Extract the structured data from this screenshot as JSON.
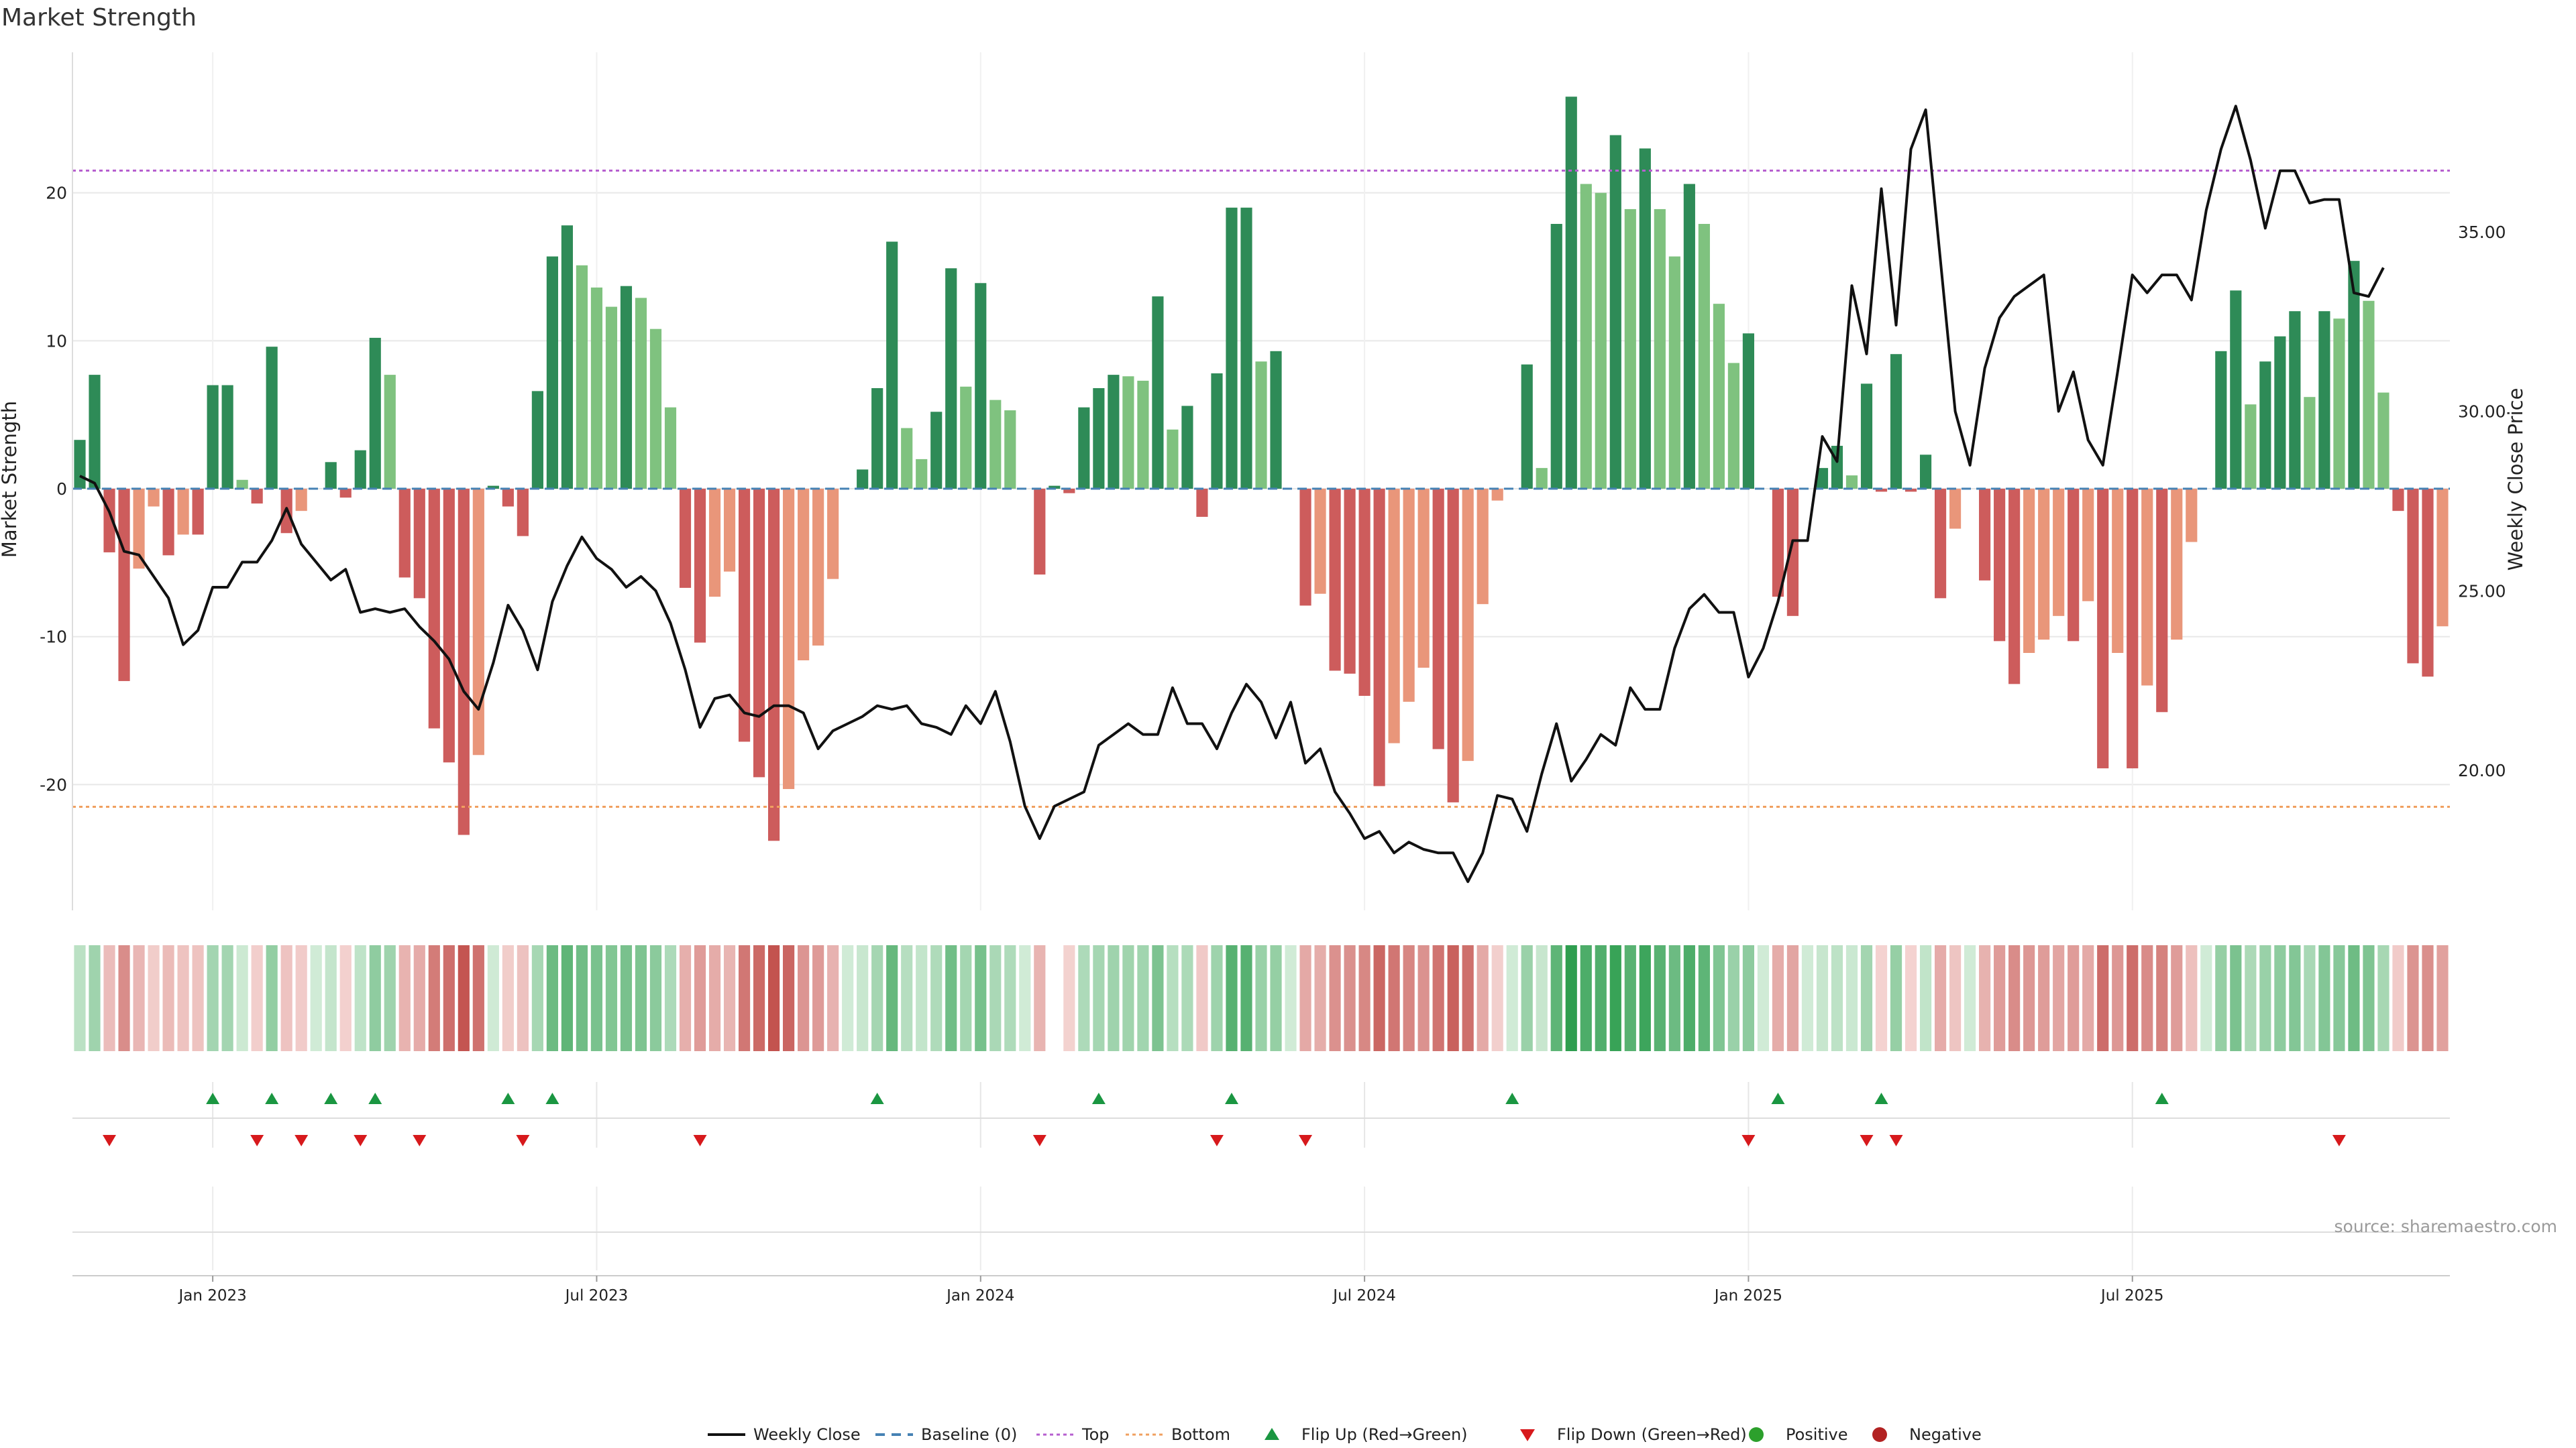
{
  "chart_data": {
    "type": "bar",
    "title": "Market Strength",
    "ylabel_left": "Market Strength",
    "ylabel_right": "Weekly Close Price",
    "source": "source: sharemaestro.com",
    "ylim_left": [
      -28.5,
      29.5
    ],
    "ylim_right": [
      16.1,
      40.0
    ],
    "yticks_left": [
      {
        "value": 20,
        "label": "20"
      },
      {
        "value": 10,
        "label": "10"
      },
      {
        "value": 0,
        "label": "0"
      },
      {
        "value": -10,
        "label": "-10"
      },
      {
        "value": -20,
        "label": "-20"
      }
    ],
    "yticks_right": [
      {
        "value": 35,
        "label": "35.00"
      },
      {
        "value": 30,
        "label": "30.00"
      },
      {
        "value": 25,
        "label": "25.00"
      },
      {
        "value": 20,
        "label": "20.00"
      }
    ],
    "xticks": [
      {
        "index": 9,
        "label": "Jan 2023"
      },
      {
        "index": 35,
        "label": "Jul 2023"
      },
      {
        "index": 61,
        "label": "Jan 2024"
      },
      {
        "index": 87,
        "label": "Jul 2024"
      },
      {
        "index": 113,
        "label": "Jan 2025"
      },
      {
        "index": 139,
        "label": "Jul 2025"
      }
    ],
    "top_line": 21.5,
    "bottom_line": -21.5,
    "market_strength": [
      3.3,
      7.7,
      -4.3,
      -13,
      -5.4,
      -1.2,
      -4.5,
      -3.1,
      -3.1,
      7,
      7,
      0.6,
      -1,
      9.6,
      -3,
      -1.5,
      0,
      1.8,
      -0.6,
      2.6,
      10.2,
      7.7,
      -6,
      -7.4,
      -16.2,
      -18.5,
      -23.4,
      -18,
      0.2,
      -1.2,
      -3.2,
      6.6,
      15.7,
      17.8,
      15.1,
      13.6,
      12.3,
      13.7,
      12.9,
      10.8,
      5.5,
      -6.7,
      -10.4,
      -7.3,
      -5.6,
      -17.1,
      -19.5,
      -23.8,
      -20.3,
      -11.6,
      -10.6,
      -6.1,
      0,
      1.3,
      6.8,
      16.7,
      4.1,
      2,
      5.2,
      14.9,
      6.9,
      13.9,
      6,
      5.3,
      0,
      -5.8,
      0.2,
      -0.3,
      5.5,
      6.8,
      7.7,
      7.6,
      7.3,
      13,
      4,
      5.6,
      -1.9,
      7.8,
      19,
      19,
      8.6,
      9.3,
      0,
      -7.9,
      -7.1,
      -12.3,
      -12.5,
      -14,
      -20.1,
      -17.2,
      -14.4,
      -12.1,
      -17.6,
      -21.2,
      -18.4,
      -7.8,
      -0.8,
      0,
      8.4,
      1.4,
      17.9,
      26.5,
      20.6,
      20,
      23.9,
      18.9,
      23,
      18.9,
      15.7,
      20.6,
      17.9,
      12.5,
      8.5,
      10.5,
      0,
      -7.3,
      -8.6,
      0,
      1.4,
      2.9,
      0.9,
      7.1,
      -0.2,
      9.1,
      -0.2,
      2.3,
      -7.4,
      -2.7,
      0,
      -6.2,
      -10.3,
      -13.2,
      -11.1,
      -10.2,
      -8.6,
      -10.3,
      -7.6,
      -18.9,
      -11.1,
      -18.9,
      -13.3,
      -15.1,
      -10.2,
      -3.6,
      0,
      9.3,
      13.4,
      5.7,
      8.6,
      10.3,
      12,
      6.2,
      12,
      11.5,
      15.4,
      12.7,
      6.5,
      -1.5,
      -11.8,
      -12.7,
      -9.3
    ],
    "weekly_close": [
      28.2,
      28.0,
      27.2,
      26.1,
      26.0,
      25.4,
      24.8,
      23.5,
      23.9,
      25.1,
      25.1,
      25.8,
      25.8,
      26.4,
      27.3,
      26.3,
      25.8,
      25.3,
      25.6,
      24.4,
      24.5,
      24.4,
      24.5,
      24.0,
      23.6,
      23.1,
      22.2,
      21.7,
      23.0,
      24.6,
      23.9,
      22.8,
      24.7,
      25.7,
      26.5,
      25.9,
      25.6,
      25.1,
      25.4,
      25.0,
      24.1,
      22.8,
      21.2,
      22.0,
      22.1,
      21.6,
      21.5,
      21.8,
      21.8,
      21.6,
      20.6,
      21.1,
      21.3,
      21.5,
      21.8,
      21.7,
      21.8,
      21.3,
      21.2,
      21.0,
      21.8,
      21.3,
      22.2,
      20.8,
      19.0,
      18.1,
      19.0,
      19.2,
      19.4,
      20.7,
      21.0,
      21.3,
      21.0,
      21.0,
      22.3,
      21.3,
      21.3,
      20.6,
      21.6,
      22.4,
      21.9,
      20.9,
      21.9,
      20.2,
      20.6,
      19.4,
      18.8,
      18.1,
      18.3,
      17.7,
      18.0,
      17.8,
      17.7,
      17.7,
      16.9,
      17.7,
      19.3,
      19.2,
      18.3,
      19.9,
      21.3,
      19.7,
      20.3,
      21.0,
      20.7,
      22.3,
      21.7,
      21.7,
      23.4,
      24.5,
      24.9,
      24.4,
      24.4,
      22.6,
      23.4,
      24.7,
      26.4,
      26.4,
      29.3,
      28.6,
      33.5,
      31.6,
      36.2,
      32.4,
      37.3,
      38.4,
      34.2,
      30.0,
      28.5,
      31.2,
      32.6,
      33.2,
      33.5,
      33.8,
      30.0,
      31.1,
      29.2,
      28.5,
      31.1,
      33.8,
      33.3,
      33.8,
      33.8,
      33.1,
      35.6,
      37.3,
      38.5,
      37.0,
      35.1,
      36.7,
      36.7,
      35.8,
      35.9,
      35.9,
      33.3,
      33.2,
      34.0
    ],
    "heat_strip": [
      3.3,
      7.7,
      -4.3,
      -13,
      -5.4,
      -1.2,
      -4.5,
      -3.1,
      -3.1,
      7,
      7,
      0.6,
      -1,
      9.6,
      -3,
      -1.5,
      0,
      1.8,
      -0.6,
      2.6,
      10.2,
      7.7,
      -6,
      -7.4,
      -16.2,
      -18.5,
      -23.4,
      -18,
      0.2,
      -1.2,
      -3.2,
      6.6,
      15.7,
      17.8,
      15.1,
      13.6,
      12.3,
      13.7,
      12.9,
      10.8,
      5.5,
      -6.7,
      -10.4,
      -7.3,
      -5.6,
      -17.1,
      -19.5,
      -23.8,
      -20.3,
      -11.6,
      -10.6,
      -6.1,
      0,
      1.3,
      6.8,
      16.7,
      4.1,
      2,
      5.2,
      14.9,
      6.9,
      13.9,
      6,
      5.3,
      0,
      -5.8,
      0.2,
      -0.3,
      5.5,
      6.8,
      7.7,
      7.6,
      7.3,
      13,
      4,
      5.6,
      -1.9,
      7.8,
      19,
      19,
      8.6,
      9.3,
      0,
      -7.9,
      -7.1,
      -12.3,
      -12.5,
      -14,
      -20.1,
      -17.2,
      -14.4,
      -12.1,
      -17.6,
      -21.2,
      -18.4,
      -7.8,
      -0.8,
      0,
      8.4,
      1.4,
      17.9,
      26.5,
      20.6,
      20,
      23.9,
      18.9,
      23,
      18.9,
      15.7,
      20.6,
      17.9,
      12.5,
      8.5,
      10.5,
      0,
      -7.3,
      -8.6,
      0,
      1.4,
      2.9,
      0.9,
      7.1,
      -0.2,
      9.1,
      -0.2,
      2.3,
      -7.4,
      -2.7,
      0,
      -6.2,
      -10.3,
      -13.2,
      -11.1,
      -10.2,
      -8.6,
      -10.3,
      -7.6,
      -18.9,
      -11.1,
      -18.9,
      -13.3,
      -15.1,
      -10.2,
      -3.6,
      0,
      9.3,
      13.4,
      5.7,
      8.6,
      10.3,
      12,
      6.2,
      12,
      11.5,
      15.4,
      12.7,
      6.5,
      -1.5,
      -11.8,
      -12.7,
      -9.3
    ],
    "heat_strip_blank_indices": [
      66
    ],
    "flip_up_indices": [
      9,
      13,
      17,
      20,
      29,
      32,
      54,
      69,
      78,
      97,
      115,
      122,
      141
    ],
    "flip_down_indices": [
      2,
      12,
      15,
      19,
      23,
      30,
      42,
      65,
      77,
      83,
      113,
      121,
      123,
      153
    ],
    "legend": [
      {
        "label": "Weekly Close",
        "kind": "line",
        "color": "#111111"
      },
      {
        "label": "Baseline (0)",
        "kind": "dash",
        "color": "#4682b4"
      },
      {
        "label": "Top",
        "kind": "dots",
        "color": "#b65fcf"
      },
      {
        "label": "Bottom",
        "kind": "dots",
        "color": "#f0a060"
      },
      {
        "label": "Flip Up (Red→Green)",
        "kind": "tri-up",
        "color": "#1a9641"
      },
      {
        "label": "Flip Down (Green→Red)",
        "kind": "tri-down",
        "color": "#d7191c"
      },
      {
        "label": "Positive",
        "kind": "dot",
        "color": "#2ca02c"
      },
      {
        "label": "Negative",
        "kind": "dot",
        "color": "#b22222"
      }
    ],
    "colors": {
      "pos_strong": "#2e8b57",
      "pos_weak": "#7fc27f",
      "neg_strong": "#cd5c5c",
      "neg_weak": "#e9967a",
      "close_line": "#111111",
      "baseline": "#4682b4",
      "top": "#b65fcf",
      "bottom": "#f0a060",
      "flip_up": "#1a9641",
      "flip_down": "#d7191c",
      "grid": "#e8e8e8"
    }
  }
}
